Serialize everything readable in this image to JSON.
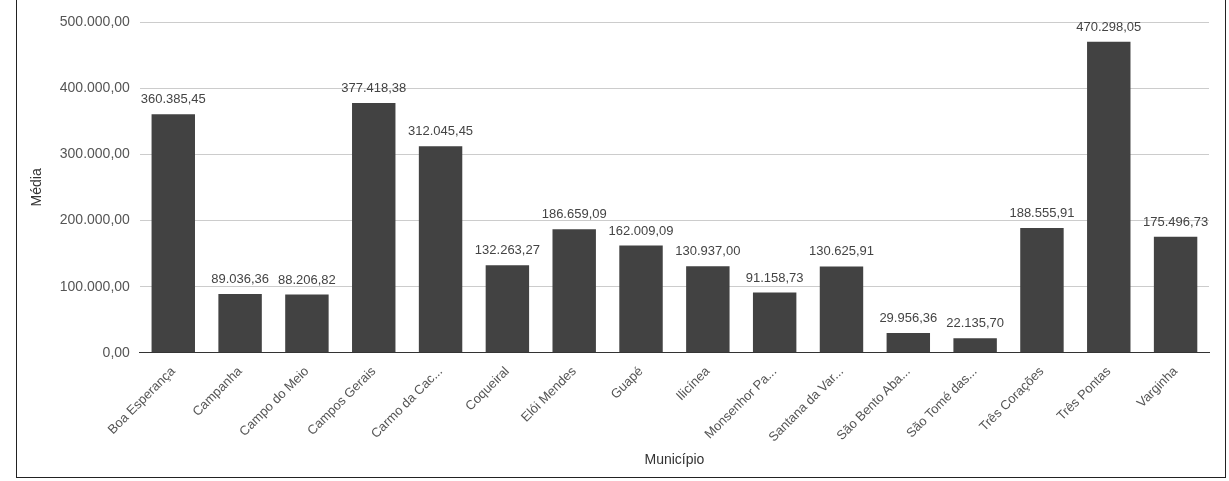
{
  "chart_data": {
    "type": "bar",
    "xlabel": "Município",
    "ylabel": "Média",
    "categories": [
      "Boa Esperança",
      "Campanha",
      "Campo do Meio",
      "Campos Gerais",
      "Carmo da Cac...",
      "Coqueiral",
      "Elói Mendes",
      "Guapé",
      "Ilicínea",
      "Monsenhor Pa...",
      "Santana da Var...",
      "São Bento Aba...",
      "São Tomé das...",
      "Três Corações",
      "Três Pontas",
      "Varginha"
    ],
    "values": [
      360385.45,
      89036.36,
      88206.82,
      377418.38,
      312045.45,
      132263.27,
      186659.09,
      162009.09,
      130937.0,
      91158.73,
      130625.91,
      29956.36,
      22135.7,
      188555.91,
      470298.05,
      175496.73
    ],
    "value_labels": [
      "360.385,45",
      "89.036,36",
      "88.206,82",
      "377.418,38",
      "312.045,45",
      "132.263,27",
      "186.659,09",
      "162.009,09",
      "130.937,00",
      "91.158,73",
      "130.625,91",
      "29.956,36",
      "22.135,70",
      "188.555,91",
      "470.298,05",
      "175.496,73"
    ],
    "color": "#424242",
    "ylim": [
      0,
      500000
    ],
    "yticks": [
      {
        "value": 0,
        "label": "0,00"
      },
      {
        "value": 100000,
        "label": "100.000,00"
      },
      {
        "value": 200000,
        "label": "200.000,00"
      },
      {
        "value": 300000,
        "label": "300.000,00"
      },
      {
        "value": 400000,
        "label": "400.000,00"
      },
      {
        "value": 500000,
        "label": "500.000,00"
      }
    ],
    "grid": "y",
    "legend": false
  }
}
